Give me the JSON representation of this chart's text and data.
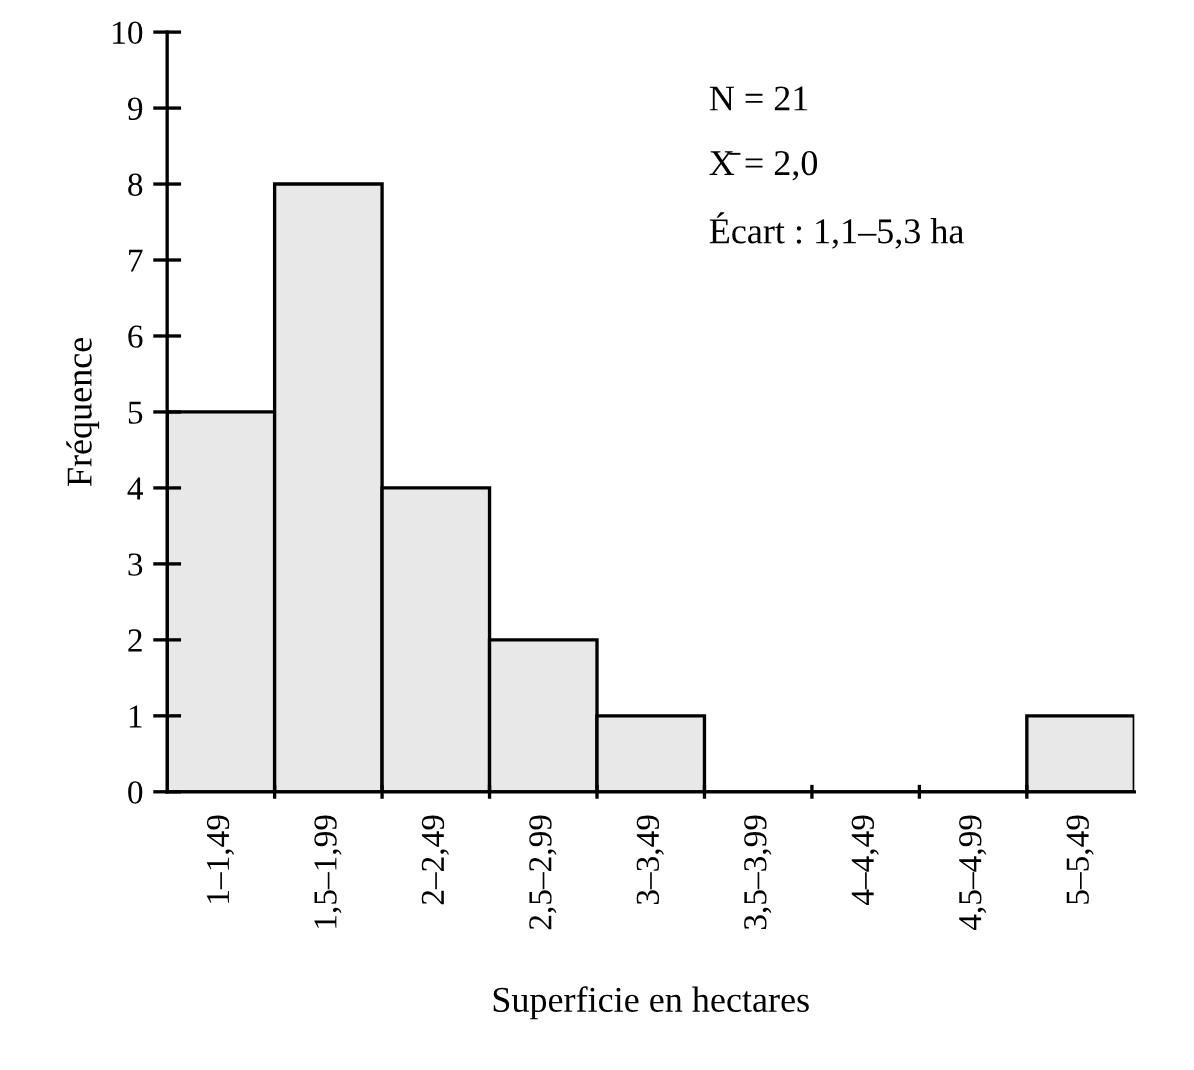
{
  "chart_data": {
    "type": "bar",
    "categories": [
      "1–1,49",
      "1,5–1,99",
      "2–2,49",
      "2,5–2,99",
      "3–3,49",
      "3,5–3,99",
      "4–4,49",
      "4,5–4,99",
      "5–5,49"
    ],
    "values": [
      5,
      8,
      4,
      2,
      1,
      0,
      0,
      0,
      1
    ],
    "color": "#e8e8e8",
    "xlabel": "Superficie en hectares",
    "ylabel": "Fréquence",
    "ylim": [
      0,
      10
    ],
    "yticks": [
      0,
      1,
      2,
      3,
      4,
      5,
      6,
      7,
      8,
      9,
      10
    ],
    "annotations": [
      "N = 21",
      "X̄ = 2,0",
      "Écart : 1,1–5,3 ha"
    ],
    "grid": false,
    "legend": false
  }
}
